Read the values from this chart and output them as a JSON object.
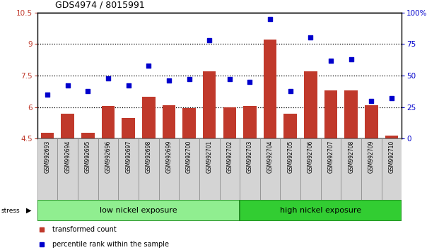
{
  "title": "GDS4974 / 8015991",
  "samples": [
    "GSM992693",
    "GSM992694",
    "GSM992695",
    "GSM992696",
    "GSM992697",
    "GSM992698",
    "GSM992699",
    "GSM992700",
    "GSM992701",
    "GSM992702",
    "GSM992703",
    "GSM992704",
    "GSM992705",
    "GSM992706",
    "GSM992707",
    "GSM992708",
    "GSM992709",
    "GSM992710"
  ],
  "bar_values": [
    4.8,
    5.7,
    4.8,
    6.05,
    5.5,
    6.5,
    6.1,
    5.95,
    7.7,
    6.0,
    6.05,
    9.2,
    5.7,
    7.7,
    6.8,
    6.8,
    6.1,
    4.65
  ],
  "dot_values": [
    35,
    42,
    38,
    48,
    42,
    58,
    46,
    47,
    78,
    47,
    45,
    95,
    38,
    80,
    62,
    63,
    30,
    32
  ],
  "bar_color": "#c0392b",
  "dot_color": "#0000cc",
  "ylim_left": [
    4.5,
    10.5
  ],
  "ylim_right": [
    0,
    100
  ],
  "yticks_left": [
    4.5,
    6.0,
    7.5,
    9.0,
    10.5
  ],
  "ytick_labels_left": [
    "4.5",
    "6",
    "7.5",
    "9",
    "10.5"
  ],
  "yticks_right": [
    0,
    25,
    50,
    75,
    100
  ],
  "ytick_labels_right": [
    "0",
    "25",
    "50",
    "75",
    "100%"
  ],
  "hlines": [
    6.0,
    7.5,
    9.0
  ],
  "group1_label": "low nickel exposure",
  "group2_label": "high nickel exposure",
  "group1_count": 10,
  "stress_label": "stress",
  "legend_bar": "transformed count",
  "legend_dot": "percentile rank within the sample",
  "group1_color": "#90EE90",
  "group2_color": "#32CD32",
  "group_border_color": "#228B22",
  "bar_bottom": 4.5,
  "cell_color": "#d4d4d4",
  "cell_edge_color": "#888888"
}
